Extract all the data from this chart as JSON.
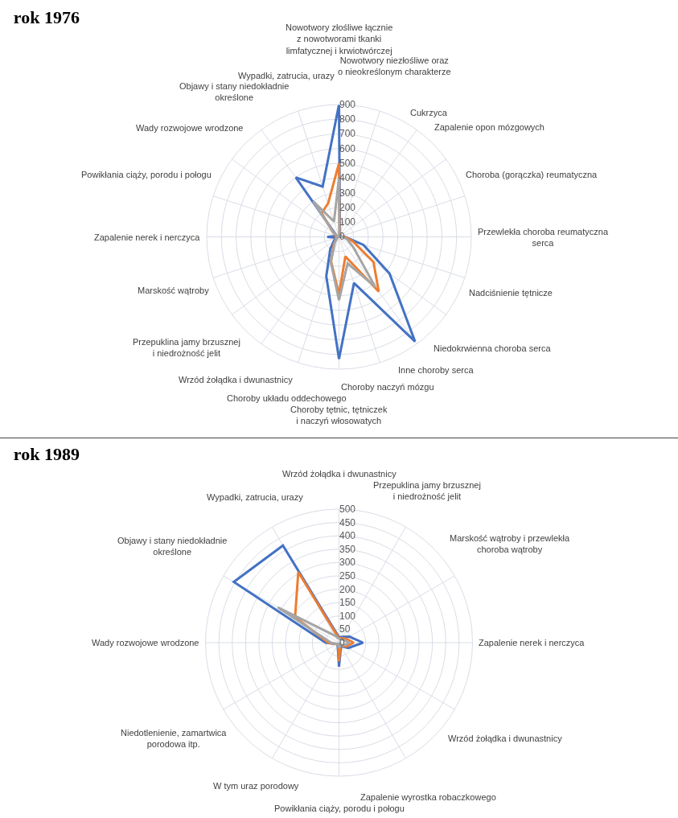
{
  "chart_data": [
    {
      "type": "radar",
      "title": "rok 1976",
      "categories": [
        "Nowotwory złośliwe łącznie z nowotworami tkanki limfatycznej i krwiotwórczej",
        "Nowotwory niezłośliwe oraz o nieokreślonym charakterze",
        "Cukrzyca",
        "Zapalenie opon mózgowych",
        "Choroba (gorączka) reumatyczna",
        "Przewlekła choroba reumatyczna serca",
        "Nadciśnienie tętnicze",
        "Niedokrwienna choroba serca",
        "Inne choroby serca",
        "Choroby naczyń mózgu",
        "Choroby tętnic, tętniczek i naczyń włosowatych",
        "Choroby układu oddechowego",
        "Wrzód żołądka i dwunastnicy",
        "Przepuklina jamy brzusznej i niedrożność jelit",
        "Marskość wątroby",
        "Zapalenie nerek i nerczyca",
        "Powikłania ciąży, porodu i połogu",
        "Wady rozwojowe wrodzone",
        "Objawy i stany niedokładnie określone",
        "Wypadki, zatrucia, urazy"
      ],
      "series": [
        {
          "color": "#4472c4",
          "values": [
            900,
            20,
            15,
            10,
            10,
            40,
            175,
            425,
            880,
            330,
            830,
            280,
            100,
            40,
            20,
            80,
            20,
            30,
            500,
            360
          ]
        },
        {
          "color": "#ed7d31",
          "values": [
            500,
            10,
            10,
            5,
            5,
            40,
            100,
            290,
            460,
            140,
            390,
            175,
            60,
            20,
            10,
            30,
            10,
            50,
            200,
            240
          ]
        },
        {
          "color": "#a5a5a5",
          "values": [
            400,
            10,
            10,
            5,
            5,
            30,
            60,
            120,
            420,
            190,
            430,
            180,
            50,
            20,
            10,
            20,
            10,
            40,
            300,
            110
          ]
        }
      ],
      "ylim": [
        0,
        900
      ],
      "yticks": [
        0,
        100,
        200,
        300,
        400,
        500,
        600,
        700,
        800,
        900
      ],
      "grid": true,
      "marker": "none",
      "line_style": "solid"
    },
    {
      "type": "radar",
      "title": "rok 1989",
      "categories": [
        "Wrzód żołądka i dwunastnicy",
        "Przepuklina jamy brzusznej i niedrożność jelit",
        "Marskość wątroby i przewlekła choroba wątroby",
        "Zapalenie nerek i nerczyca",
        "Wrzód żołądka i dwunastnicy",
        "Zapalenie wyrostka robaczkowego",
        "Powikłania ciąży, porodu i połogu",
        "W tym uraz porodowy",
        "Niedotlenienie, zamartwica porodowa itp.",
        "Wady rozwojowe wrodzone",
        "Objawy i stany niedokładnie określone",
        "Wypadki, zatrucia, urazy"
      ],
      "series": [
        {
          "color": "#4472c4",
          "values": [
            20,
            25,
            45,
            90,
            40,
            15,
            90,
            10,
            10,
            50,
            455,
            420
          ]
        },
        {
          "color": "#ed7d31",
          "values": [
            15,
            20,
            30,
            55,
            30,
            10,
            70,
            5,
            10,
            40,
            190,
            305
          ]
        },
        {
          "color": "#a5a5a5",
          "values": [
            15,
            15,
            20,
            40,
            20,
            10,
            20,
            5,
            10,
            30,
            265,
            30
          ]
        }
      ],
      "ylim": [
        0,
        500
      ],
      "yticks": [
        0,
        50,
        100,
        150,
        200,
        250,
        300,
        350,
        400,
        450,
        500
      ],
      "grid": true,
      "marker": "none",
      "line_style": "solid"
    }
  ]
}
